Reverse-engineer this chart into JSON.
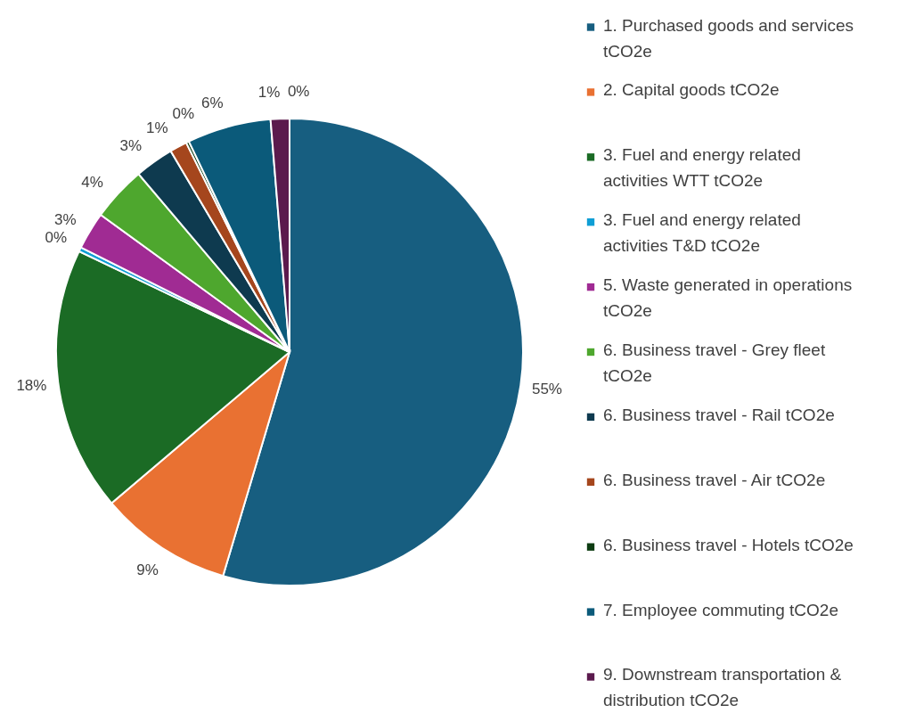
{
  "chart_data": {
    "type": "pie",
    "categories": [
      "1. Purchased goods and services tCO2e",
      "2. Capital goods tCO2e",
      "3. Fuel and energy related activities WTT tCO2e",
      "3. Fuel and energy related activities T&D tCO2e",
      "5. Waste generated in operations tCO2e",
      "6. Business travel - Grey fleet tCO2e",
      "6. Business travel - Rail tCO2e",
      "6. Business travel - Air tCO2e",
      "6. Business travel - Hotels tCO2e",
      "7. Employee commuting tCO2e",
      "9. Downstream transportation & distribution tCO2e",
      null
    ],
    "values": [
      54.6,
      9.2,
      18.3,
      0.3,
      2.6,
      3.8,
      2.7,
      1.2,
      0.2,
      5.8,
      1.3,
      0
    ],
    "value_labels": [
      "55%",
      "9%",
      "18%",
      "0%",
      "3%",
      "4%",
      "3%",
      "1%",
      "0%",
      "6%",
      "1%",
      "0%"
    ],
    "colors": [
      "#175e80",
      "#e97132",
      "#1b6b25",
      "#0f9ed5",
      "#a02b93",
      "#4ea72e",
      "#0e3a4f",
      "#a5461d",
      "#0d3c12",
      "#0b5a7a",
      "#5b1a4d",
      "#3a6fb0"
    ],
    "legend": "right"
  }
}
